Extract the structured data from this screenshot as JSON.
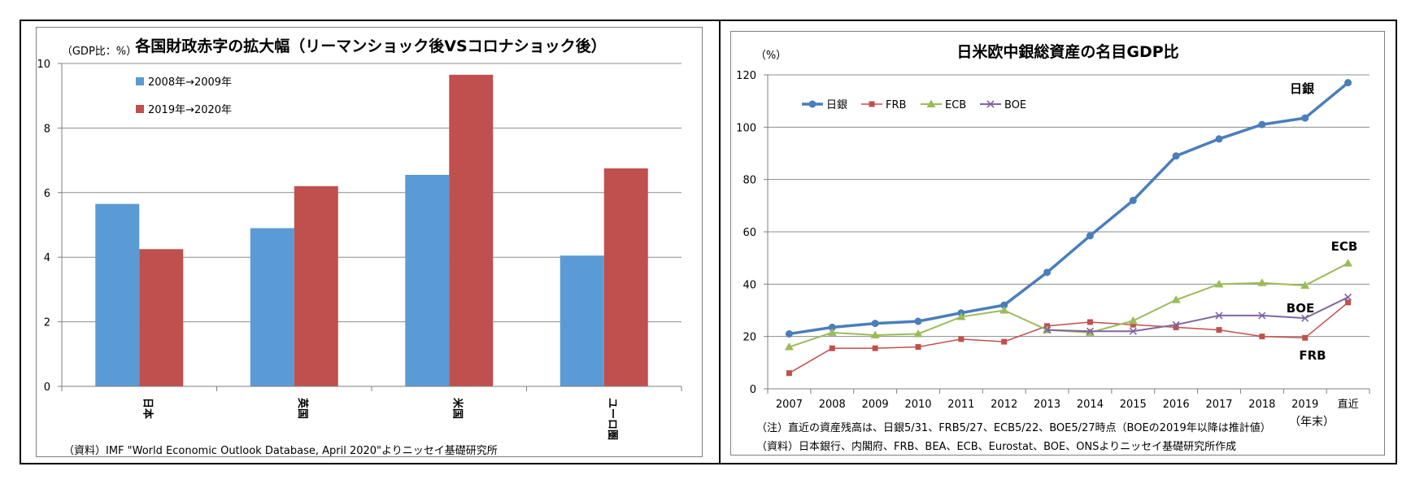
{
  "left_chart": {
    "title": "各国財政赤字の拡大幅（リーマンショック後VSコロナショック後）",
    "unit_label": "（GDP比：%）",
    "source": "（資料）IMF \"World Economic Outlook Database, April 2020\"よりニッセイ基礎研究所",
    "colors": {
      "series1": "#5b9bd5",
      "series2": "#c0504d",
      "grid": "#8c8c8c",
      "axis": "#7f7f7f"
    }
  },
  "right_chart": {
    "title": "日米欧中銀総資産の名目GDP比",
    "unit_label": "（%）",
    "note": "（注）直近の資産残高は、日銀5/31、FRB5/27、ECB5/22、BOE5/27時点（BOEの2019年以降は推計値）",
    "source": "（資料）日本銀行、内閣府、FRB、BEA、ECB、Eurostat、BOE、ONSよりニッセイ基礎研究所作成",
    "year_end_label": "（年末）",
    "colors": {
      "boj": "#4a7ebb",
      "frb": "#c0504d",
      "ecb": "#9bbb59",
      "boe": "#8064a2",
      "grid": "#8c8c8c",
      "axis": "#7f7f7f"
    }
  },
  "chart_data": [
    {
      "type": "bar",
      "title": "各国財政赤字の拡大幅（リーマンショック後VSコロナショック後）",
      "ylabel": "（GDP比：%）",
      "categories": [
        "日本",
        "英国",
        "米国",
        "ユーロ圏"
      ],
      "series": [
        {
          "name": "2008年→2009年",
          "values": [
            5.65,
            4.9,
            6.55,
            4.05
          ]
        },
        {
          "name": "2019年→2020年",
          "values": [
            4.25,
            6.2,
            9.65,
            6.75
          ]
        }
      ],
      "yticks": [
        "0",
        "2",
        "4",
        "6",
        "8",
        "10"
      ],
      "ylim": [
        0,
        10
      ],
      "legend": "top-left"
    },
    {
      "type": "line",
      "title": "日米欧中銀総資産の名目GDP比",
      "ylabel": "（%）",
      "x": [
        "2007",
        "2008",
        "2009",
        "2010",
        "2011",
        "2012",
        "2013",
        "2014",
        "2015",
        "2016",
        "2017",
        "2018",
        "2019",
        "直近"
      ],
      "series": [
        {
          "name": "日銀",
          "end_label": "日銀",
          "values": [
            21,
            23.5,
            25,
            25.8,
            29,
            32,
            44.5,
            58.5,
            72,
            89,
            95.5,
            101,
            103.5,
            117
          ]
        },
        {
          "name": "FRB",
          "end_label": "FRB",
          "values": [
            6,
            15.5,
            15.5,
            16,
            19,
            18,
            24,
            25.5,
            24.5,
            23.5,
            22.5,
            20,
            19.5,
            33
          ]
        },
        {
          "name": "ECB",
          "end_label": "ECB",
          "values": [
            16,
            21.5,
            20.5,
            21,
            27.5,
            30,
            22.5,
            21.5,
            26,
            34,
            40,
            40.5,
            39.5,
            48
          ]
        },
        {
          "name": "BOE",
          "end_label": "BOE",
          "values": [
            null,
            null,
            null,
            null,
            null,
            null,
            22.5,
            22,
            22,
            24.5,
            28,
            28,
            27,
            35
          ]
        }
      ],
      "yticks": [
        "0",
        "20",
        "40",
        "60",
        "80",
        "100",
        "120"
      ],
      "ylim": [
        0,
        120
      ],
      "legend": "top-left"
    }
  ]
}
